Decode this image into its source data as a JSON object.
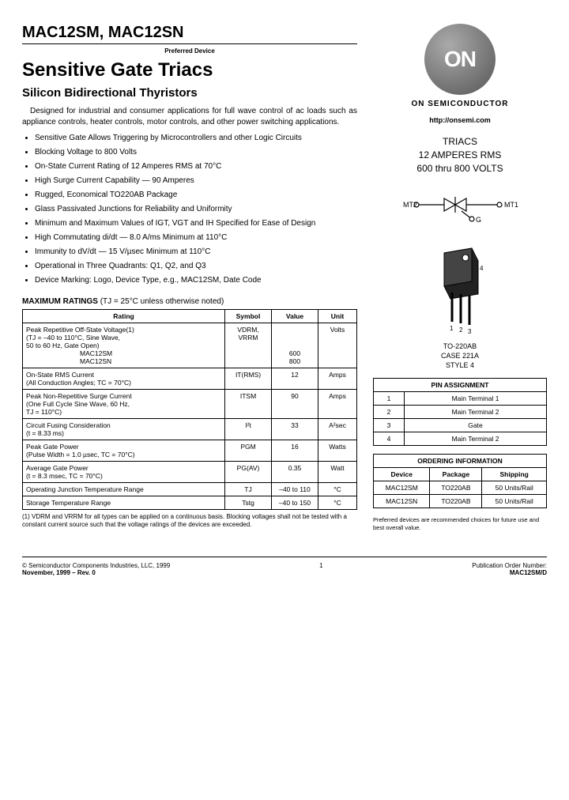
{
  "header": {
    "part_numbers": "MAC12SM, MAC12SN",
    "preferred": "Preferred Device",
    "title": "Sensitive Gate Triacs",
    "subtitle": "Silicon Bidirectional Thyristors"
  },
  "intro": "Designed for industrial and consumer applications for full wave control of ac loads such as appliance controls, heater controls, motor controls, and other power switching applications.",
  "features": [
    "Sensitive Gate Allows Triggering by Microcontrollers and other Logic Circuits",
    "Blocking Voltage to 800 Volts",
    "On-State Current Rating of 12 Amperes RMS at 70°C",
    "High Surge Current Capability — 90 Amperes",
    "Rugged, Economical TO220AB Package",
    "Glass Passivated Junctions for Reliability and Uniformity",
    "Minimum and Maximum Values of IGT, VGT and IH Specified for Ease of Design",
    "High Commutating di/dt — 8.0 A/ms Minimum at 110°C",
    "Immunity to dV/dt — 15 V/µsec Minimum at 110°C",
    "Operational in Three Quadrants: Q1, Q2, and Q3",
    "Device Marking: Logo, Device Type, e.g., MAC12SM, Date Code"
  ],
  "ratings": {
    "heading": "MAXIMUM RATINGS",
    "heading_note": "(TJ = 25°C unless otherwise noted)",
    "columns": [
      "Rating",
      "Symbol",
      "Value",
      "Unit"
    ],
    "rows": [
      {
        "rating": "Peak Repetitive Off-State Voltage(1)\n(TJ = –40 to 110°C, Sine Wave,\n50 to 60 Hz, Gate Open)\n        MAC12SM\n        MAC12SN",
        "symbol": "VDRM,\nVRRM",
        "value": "\n\n\n600\n800",
        "unit": "Volts"
      },
      {
        "rating": "On-State RMS Current\n(All Conduction Angles; TC = 70°C)",
        "symbol": "IT(RMS)",
        "value": "12",
        "unit": "Amps"
      },
      {
        "rating": "Peak Non-Repetitive Surge Current\n(One Full Cycle Sine Wave, 60 Hz,\nTJ = 110°C)",
        "symbol": "ITSM",
        "value": "90",
        "unit": "Amps"
      },
      {
        "rating": "Circuit Fusing Consideration\n(t = 8.33 ms)",
        "symbol": "I²t",
        "value": "33",
        "unit": "A²sec"
      },
      {
        "rating": "Peak Gate Power\n(Pulse Width = 1.0 µsec, TC = 70°C)",
        "symbol": "PGM",
        "value": "16",
        "unit": "Watts"
      },
      {
        "rating": "Average Gate Power\n(t = 8.3 msec, TC = 70°C)",
        "symbol": "PG(AV)",
        "value": "0.35",
        "unit": "Watt"
      },
      {
        "rating": "Operating Junction Temperature Range",
        "symbol": "TJ",
        "value": "–40 to 110",
        "unit": "°C"
      },
      {
        "rating": "Storage Temperature Range",
        "symbol": "Tstg",
        "value": "–40 to 150",
        "unit": "°C"
      }
    ],
    "footnote": "(1) VDRM and VRRM for all types can be applied on a continuous basis. Blocking voltages shall not be tested with a constant current source such that the voltage ratings of the devices are exceeded."
  },
  "right": {
    "logo_text": "ON",
    "brand": "ON SEMICONDUCTOR",
    "url": "http://onsemi.com",
    "specs": [
      "TRIACS",
      "12 AMPERES RMS",
      "600 thru 800 VOLTS"
    ],
    "schematic_labels": {
      "mt2": "MT2",
      "mt1": "MT1",
      "g": "G"
    },
    "package_labels": [
      "TO-220AB",
      "CASE 221A",
      "STYLE 4"
    ],
    "pin_table": {
      "title": "PIN ASSIGNMENT",
      "rows": [
        [
          "1",
          "Main Terminal 1"
        ],
        [
          "2",
          "Main Terminal 2"
        ],
        [
          "3",
          "Gate"
        ],
        [
          "4",
          "Main Terminal 2"
        ]
      ]
    },
    "order_table": {
      "title": "ORDERING INFORMATION",
      "columns": [
        "Device",
        "Package",
        "Shipping"
      ],
      "rows": [
        [
          "MAC12SM",
          "TO220AB",
          "50 Units/Rail"
        ],
        [
          "MAC12SN",
          "TO220AB",
          "50 Units/Rail"
        ]
      ]
    },
    "pref_note": "Preferred devices are recommended choices for future use and best overall value."
  },
  "footer": {
    "left1": "© Semiconductor Components Industries, LLC, 1999",
    "left2": "November, 1999 – Rev. 0",
    "page": "1",
    "right1": "Publication Order Number:",
    "right2": "MAC12SM/D"
  },
  "colors": {
    "text": "#000000",
    "border": "#000000",
    "logo_grad_light": "#aaaaaa",
    "logo_grad_dark": "#555555"
  }
}
